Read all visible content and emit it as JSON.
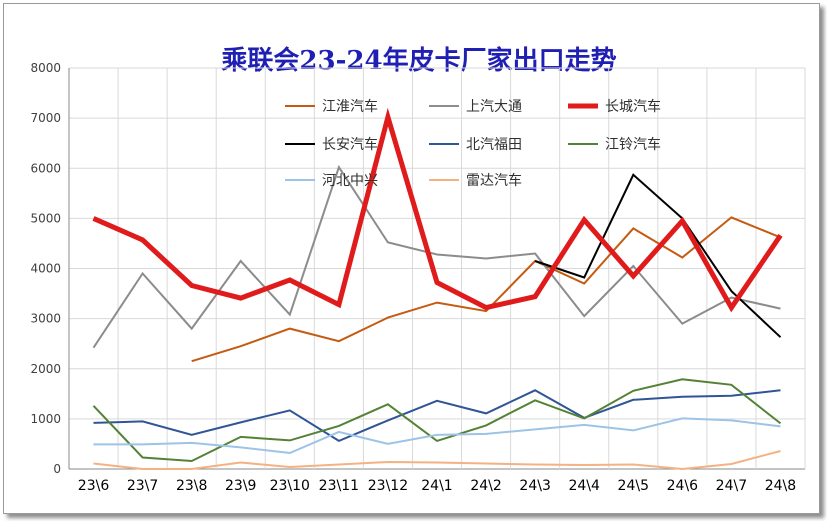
{
  "chart_data": {
    "type": "line",
    "title": "乘联会23-24年皮卡厂家出口走势",
    "xlabel": "",
    "ylabel": "",
    "ylim": [
      0,
      8000
    ],
    "yticks": [
      0,
      1000,
      2000,
      3000,
      4000,
      5000,
      6000,
      7000,
      8000
    ],
    "grid": true,
    "legend_position": "top-center",
    "categories": [
      "23\\6",
      "23\\7",
      "23\\8",
      "23\\9",
      "23\\10",
      "23\\11",
      "23\\12",
      "24\\1",
      "24\\2",
      "24\\3",
      "24\\4",
      "24\\5",
      "24\\6",
      "24\\7",
      "24\\8"
    ],
    "series": [
      {
        "name": "江淮汽车",
        "color": "#c55a11",
        "width": 2,
        "values": [
          null,
          null,
          2150,
          2450,
          2800,
          2550,
          3020,
          3320,
          3150,
          4150,
          3700,
          4800,
          4220,
          5020,
          4620
        ]
      },
      {
        "name": "上汽大通",
        "color": "#8c8c8c",
        "width": 2,
        "values": [
          2420,
          3900,
          2800,
          4150,
          3080,
          6020,
          4520,
          4280,
          4200,
          4300,
          3050,
          4050,
          2900,
          3420,
          3200
        ]
      },
      {
        "name": "长城汽车",
        "color": "#e01b1b",
        "width": 5,
        "values": [
          5000,
          4570,
          3660,
          3410,
          3770,
          3280,
          7020,
          3720,
          3220,
          3440,
          4970,
          3850,
          4950,
          3220,
          4660
        ]
      },
      {
        "name": "长安汽车",
        "color": "#000000",
        "width": 2,
        "values": [
          null,
          null,
          null,
          null,
          null,
          null,
          null,
          null,
          null,
          4150,
          3820,
          5870,
          5000,
          3550,
          2630
        ]
      },
      {
        "name": "北汽福田",
        "color": "#2f5597",
        "width": 2,
        "values": [
          920,
          950,
          680,
          930,
          1170,
          560,
          970,
          1360,
          1110,
          1570,
          1020,
          1380,
          1440,
          1460,
          1570
        ]
      },
      {
        "name": "江铃汽车",
        "color": "#548235",
        "width": 2,
        "values": [
          1260,
          230,
          160,
          640,
          570,
          860,
          1290,
          560,
          870,
          1370,
          1010,
          1560,
          1790,
          1680,
          910
        ]
      },
      {
        "name": "河北中兴",
        "color": "#9dc3e6",
        "width": 2,
        "values": [
          490,
          490,
          520,
          430,
          320,
          740,
          500,
          680,
          700,
          790,
          880,
          770,
          1010,
          970,
          850
        ]
      },
      {
        "name": "雷达汽车",
        "color": "#f4b183",
        "width": 2,
        "values": [
          110,
          0,
          0,
          130,
          40,
          90,
          140,
          130,
          110,
          90,
          80,
          90,
          0,
          100,
          360
        ]
      }
    ]
  }
}
